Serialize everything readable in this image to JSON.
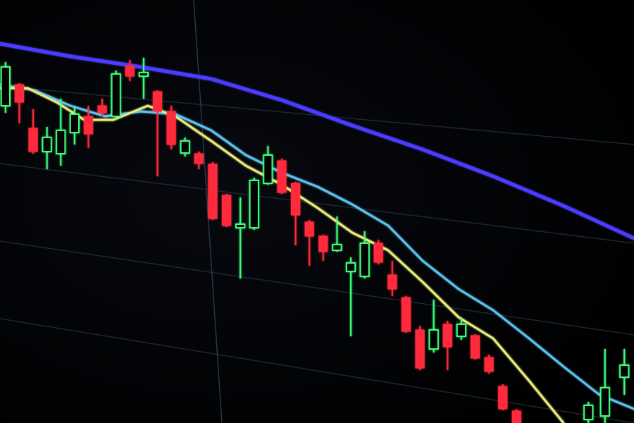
{
  "chart_data": {
    "type": "candlestick",
    "xlim": [
      -0.4,
      45.5
    ],
    "ylim": [
      0,
      600
    ],
    "up_color": "#3dff7a",
    "down_color": "#ff2a3a",
    "candles": {
      "x": [
        0,
        1,
        2,
        3,
        4,
        5,
        6,
        7,
        8,
        9,
        10,
        11,
        12,
        13,
        14,
        15,
        16,
        17,
        18,
        19,
        20,
        21,
        22,
        23,
        24,
        25,
        26,
        27,
        28,
        29,
        30,
        31,
        32,
        33,
        34,
        35,
        36,
        37,
        42.2,
        43.4,
        44.8
      ],
      "open": [
        450,
        480,
        418,
        385,
        382,
        412,
        435,
        450,
        435,
        507,
        492,
        470,
        442,
        383,
        382,
        367,
        323,
        277,
        277,
        340,
        372,
        340,
        285,
        265,
        245,
        215,
        208,
        255,
        210,
        178,
        132,
        105,
        140,
        123,
        124,
        93,
        52,
        17,
        5,
        10,
        65
      ],
      "high": [
        512,
        482,
        445,
        420,
        460,
        450,
        450,
        460,
        500,
        515,
        518,
        472,
        450,
        405,
        385,
        370,
        325,
        320,
        348,
        393,
        375,
        342,
        288,
        267,
        293,
        235,
        272,
        260,
        230,
        180,
        138,
        175,
        145,
        150,
        126,
        97,
        55,
        20,
        30,
        105,
        105
      ],
      "low": [
        440,
        425,
        382,
        360,
        365,
        395,
        390,
        435,
        430,
        485,
        460,
        350,
        388,
        378,
        360,
        288,
        278,
        205,
        274,
        338,
        325,
        252,
        223,
        230,
        243,
        123,
        205,
        225,
        180,
        128,
        75,
        100,
        75,
        118,
        90,
        70,
        18,
        0,
        0,
        0,
        40
      ],
      "close": [
        505,
        455,
        385,
        405,
        415,
        438,
        410,
        440,
        495,
        492,
        497,
        442,
        395,
        400,
        368,
        290,
        280,
        282,
        344,
        380,
        327,
        295,
        265,
        243,
        253,
        227,
        255,
        228,
        190,
        130,
        78,
        132,
        108,
        140,
        92,
        73,
        20,
        0,
        25,
        50,
        82
      ]
    },
    "series": [
      {
        "color": "#4b3cff",
        "x": [
          -0.4,
          4.7,
          9.8,
          14.9,
          20,
          25.1,
          30.2,
          35.3,
          40.4,
          45.5
        ],
        "values": [
          538,
          520,
          505,
          488,
          458,
          422,
          388,
          350,
          308,
          262
        ]
      },
      {
        "color": "#5cc4f0",
        "x": [
          -0.4,
          2.1,
          4.7,
          7.2,
          9.8,
          12.3,
          14.9,
          17.4,
          20,
          22.6,
          25.1,
          27.7,
          30.2,
          32.8,
          35.3,
          37.9,
          40.4,
          43,
          45.5
        ],
        "values": [
          480,
          472,
          450,
          435,
          442,
          438,
          415,
          380,
          355,
          335,
          310,
          280,
          230,
          190,
          160,
          120,
          80,
          40,
          20
        ]
      },
      {
        "color": "#ecec7a",
        "x": [
          -0.4,
          1.6,
          3.7,
          5.7,
          7.8,
          10.3,
          12.3,
          14.9,
          17.4,
          20,
          22.6,
          25.1,
          27.7,
          30.2,
          32.8,
          35.3,
          37.9,
          40.4
        ],
        "values": [
          475,
          475,
          455,
          430,
          430,
          450,
          435,
          400,
          365,
          338,
          305,
          270,
          245,
          200,
          150,
          120,
          60,
          0
        ]
      }
    ]
  }
}
